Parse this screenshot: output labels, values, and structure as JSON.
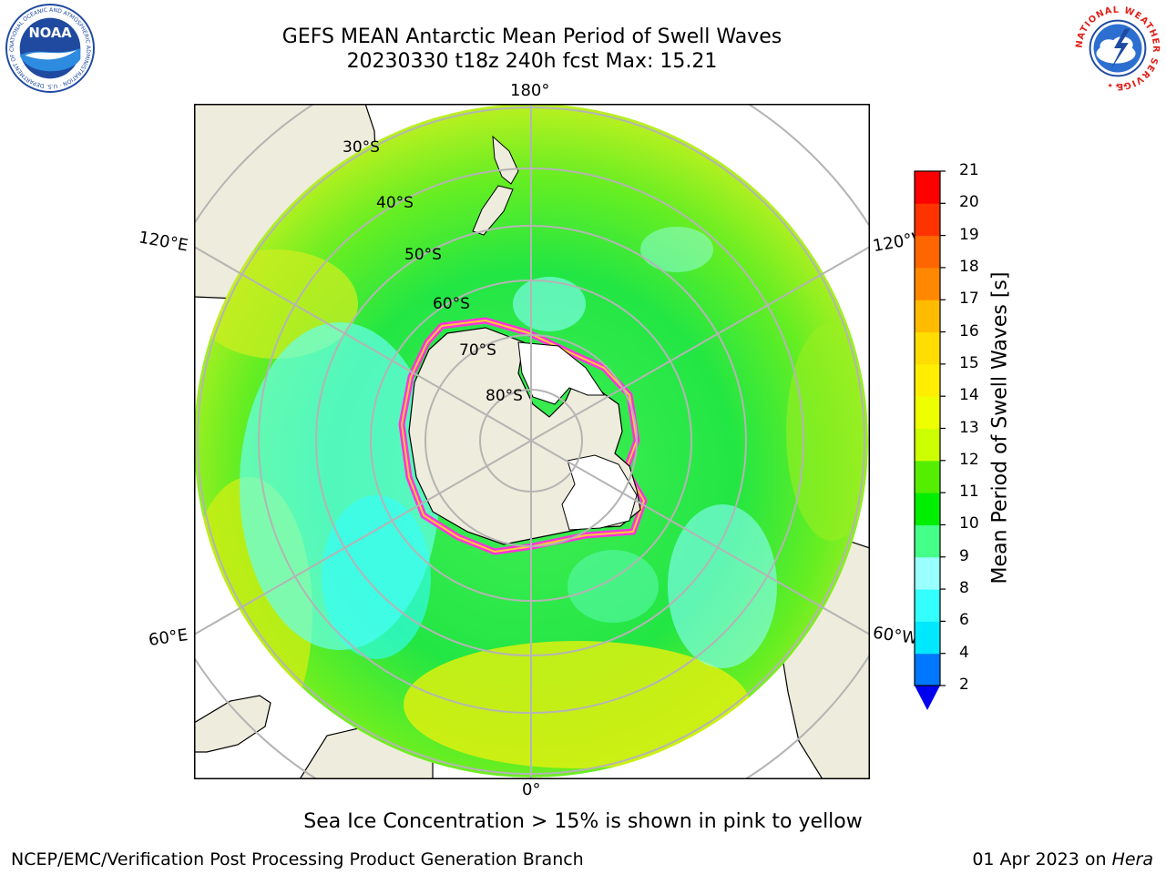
{
  "header": {
    "title_line1": "GEFS MEAN Antarctic Mean Period of Swell Waves",
    "title_line2": "20230330 t18z 240h fcst   Max: 15.21"
  },
  "logos": {
    "left_text": "NOAA",
    "left_ring_text": "NATIONAL OCEANIC AND ATMOSPHERIC ADMINISTRATION · U.S. DEPARTMENT OF COMMERCE",
    "right_ring_text": "NATIONAL WEATHER SERVICE"
  },
  "map": {
    "projection": "south polar stereographic",
    "longitude_labels": {
      "top": "180°",
      "bottom": "0°",
      "upper_left": "120°E",
      "lower_left": "60°E",
      "upper_right": "120°W",
      "lower_right": "60°W"
    },
    "latitude_labels": [
      "30°S",
      "40°S",
      "50°S",
      "60°S",
      "70°S",
      "80°S"
    ],
    "colors": {
      "land": "#eeecdc",
      "ice_edge": "#ff33dd",
      "grid": "#b4b4b4"
    }
  },
  "colorbar": {
    "title": "Mean Period of Swell Waves [s]",
    "ticks": [
      "2",
      "4",
      "6",
      "8",
      "9",
      "10",
      "11",
      "12",
      "13",
      "14",
      "15",
      "16",
      "17",
      "18",
      "19",
      "20",
      "21"
    ],
    "colors": [
      "#0077ff",
      "#00e8ff",
      "#33ffff",
      "#99ffff",
      "#44ff88",
      "#00ee00",
      "#55ee00",
      "#ccff00",
      "#eeff00",
      "#ffee00",
      "#ffdd00",
      "#ffbb00",
      "#ff8800",
      "#ff6600",
      "#ff3300",
      "#ff0000"
    ],
    "extend_color": "#0000ee"
  },
  "footer": {
    "caption": "Sea Ice Concentration > 15% is shown in pink to yellow",
    "credit_left": "NCEP/EMC/Verification Post Processing Product Generation Branch",
    "credit_right_date": "01 Apr 2023 on ",
    "credit_right_host": "Hera"
  }
}
